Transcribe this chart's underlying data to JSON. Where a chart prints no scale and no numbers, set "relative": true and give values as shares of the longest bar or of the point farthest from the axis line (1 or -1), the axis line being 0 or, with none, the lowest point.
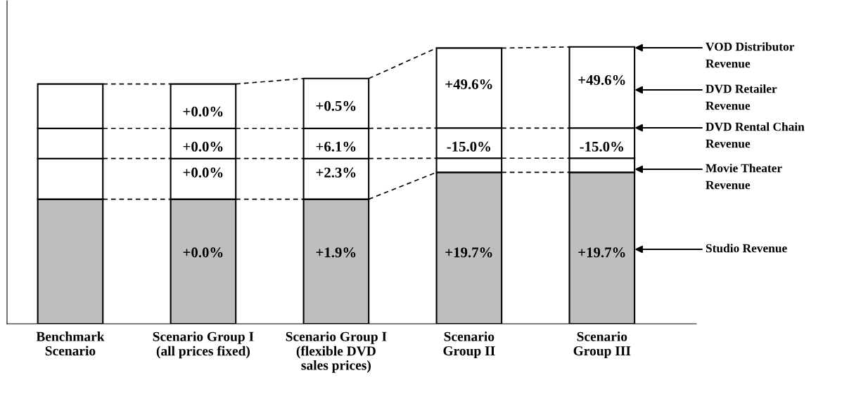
{
  "chart_data": {
    "type": "bar",
    "stacked": true,
    "relative": true,
    "categories": [
      "Benchmark\nScenario",
      "Scenario Group I\n(all prices fixed)",
      "Scenario Group I\n(flexible DVD\nsales prices)",
      "Scenario\nGroup II",
      "Scenario\nGroup III"
    ],
    "series": [
      {
        "color": "#bcbec0",
        "values": [
          0.45,
          0.45,
          0.45,
          0.547,
          0.547
        ]
      },
      {
        "color": "#ffffff",
        "values": [
          0.147,
          0.147,
          0.147,
          0.051,
          0.051
        ]
      },
      {
        "color": "#ffffff",
        "values": [
          0.109,
          0.109,
          0.109,
          0.109,
          0.109
        ]
      },
      {
        "color": "#ffffff",
        "values": [
          0.16,
          0.16,
          0.18,
          0.289,
          0.293
        ]
      }
    ],
    "annotations": [
      "+0.0%",
      "+0.0%",
      "+0.0%",
      "+0.0%",
      "+1.9%",
      "+2.3%",
      "+6.1%",
      "+0.5%",
      "+19.7%",
      "-15.0%",
      "+49.6%",
      "+19.7%",
      "-15.0%",
      "+49.6%",
      "VOD Distributor\nRevenue",
      "DVD Retailer\nRevenue",
      "DVD Rental Chain\nRevenue",
      "Movie Theater\nRevenue",
      "Studio Revenue"
    ]
  }
}
